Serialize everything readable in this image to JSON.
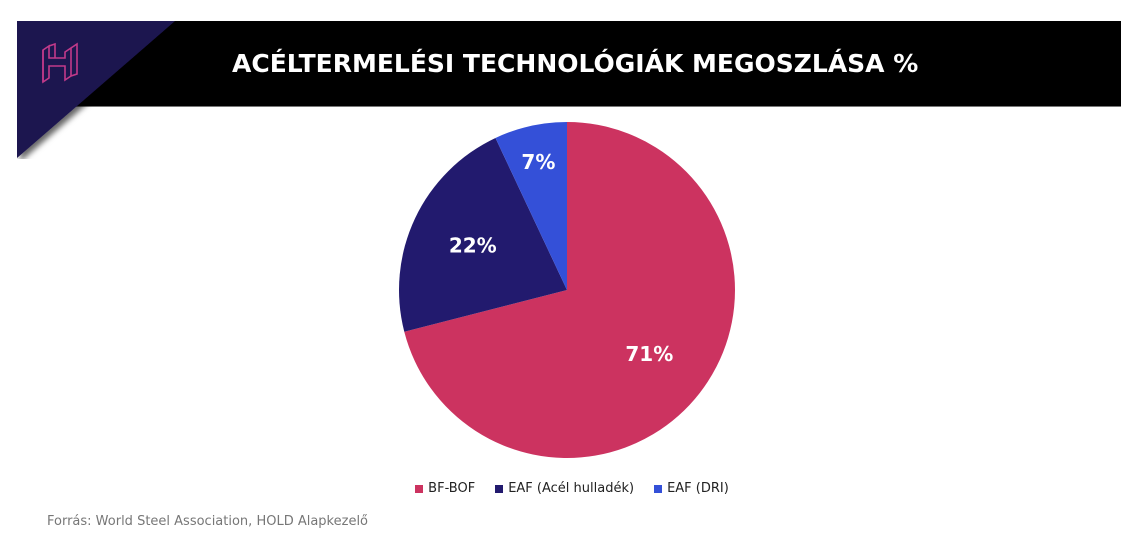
{
  "header": {
    "title": "ACÉLTERMELÉSI TECHNOLÓGIÁK MEGOSZLÁSA %",
    "logo_icon": "hold-h-logo-icon",
    "colors": {
      "banner": "#000000",
      "corner": "#1E1650",
      "logo_stroke": "#C23A8A"
    }
  },
  "chart_data": {
    "type": "pie",
    "title": "ACÉLTERMELÉSI TECHNOLÓGIÁK MEGOSZLÁSA %",
    "categories": [
      "BF-BOF",
      "EAF (Acél hulladék)",
      "EAF (DRI)"
    ],
    "values": [
      71,
      22,
      7
    ],
    "labels": [
      "71%",
      "22%",
      "7%"
    ],
    "colors": [
      "#CC3360",
      "#221A6E",
      "#3450D8"
    ],
    "start_angle": "12 o'clock, clockwise",
    "legend_position": "bottom"
  },
  "legend": {
    "items": [
      {
        "label": "BF-BOF",
        "color": "#CC3360"
      },
      {
        "label": "EAF (Acél hulladék)",
        "color": "#221A6E"
      },
      {
        "label": "EAF (DRI)",
        "color": "#3450D8"
      }
    ]
  },
  "footer": {
    "source": "Forrás: World Steel Association, HOLD Alapkezelő"
  }
}
